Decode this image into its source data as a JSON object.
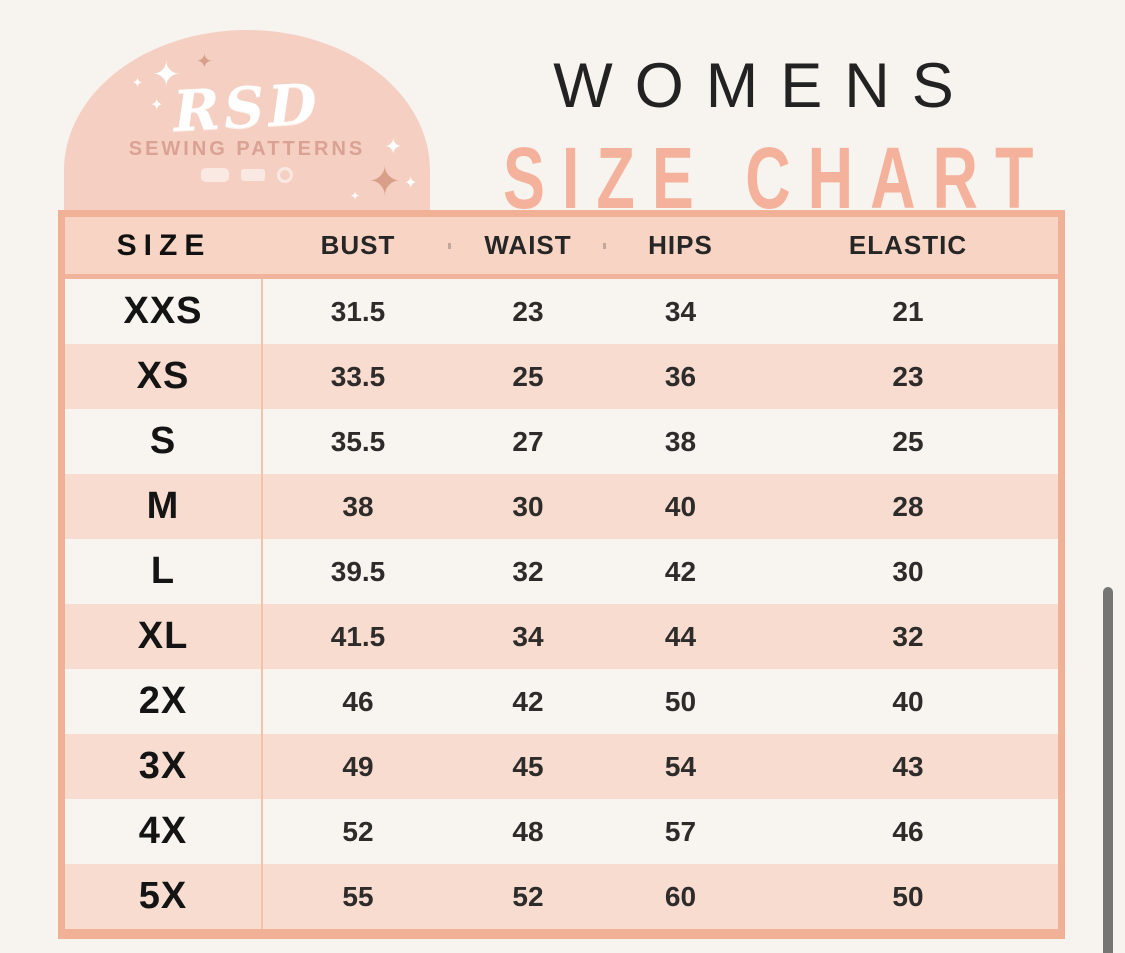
{
  "colors": {
    "page_background": "#f7f3ee",
    "badge_background": "#f5cfc1",
    "badge_subtitle": "#d9a295",
    "title_accent": "#f4b29c",
    "table_border": "#f0b197",
    "header_background": "#f8d4c4",
    "row_pink": "#f9dcd0",
    "row_white": "#f8f4f0",
    "text_dark": "#2e2c2a",
    "scrollbar_thumb": "#767674"
  },
  "icons": {
    "sparkle": "✦"
  },
  "badge": {
    "brand": "RSD",
    "subtitle": "SEWING PATTERNS"
  },
  "title": {
    "line1": "WOMENS",
    "line2": "SIZE CHART"
  },
  "chart_data": {
    "type": "table",
    "title": "WOMENS SIZE CHART",
    "columns": [
      "SIZE",
      "BUST",
      "WAIST",
      "HIPS",
      "ELASTIC"
    ],
    "rows": [
      [
        "XXS",
        "31.5",
        "23",
        "34",
        "21"
      ],
      [
        "XS",
        "33.5",
        "25",
        "36",
        "23"
      ],
      [
        "S",
        "35.5",
        "27",
        "38",
        "25"
      ],
      [
        "M",
        "38",
        "30",
        "40",
        "28"
      ],
      [
        "L",
        "39.5",
        "32",
        "42",
        "30"
      ],
      [
        "XL",
        "41.5",
        "34",
        "44",
        "32"
      ],
      [
        "2X",
        "46",
        "42",
        "50",
        "40"
      ],
      [
        "3X",
        "49",
        "45",
        "54",
        "43"
      ],
      [
        "4X",
        "52",
        "48",
        "57",
        "46"
      ],
      [
        "5X",
        "55",
        "52",
        "60",
        "50"
      ]
    ]
  }
}
